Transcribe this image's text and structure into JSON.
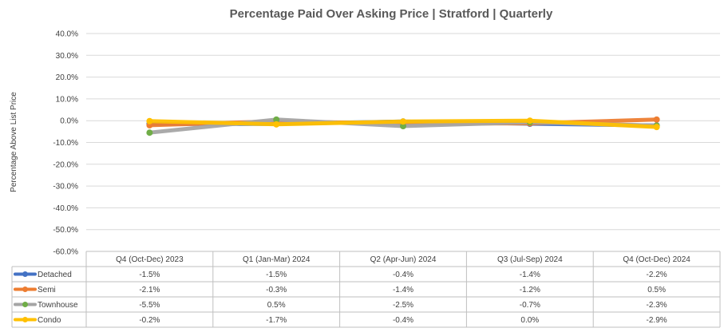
{
  "chart_data": {
    "type": "line",
    "title": "Percentage Paid Over Asking Price | Stratford |  Quarterly",
    "ylabel": "Percentage Above List Price",
    "xlabel": "",
    "ylim": [
      -60,
      40
    ],
    "yticks": [
      40,
      30,
      20,
      10,
      0,
      -10,
      -20,
      -30,
      -40,
      -50,
      -60
    ],
    "ytick_labels": [
      "40.0%",
      "30.0%",
      "20.0%",
      "10.0%",
      "0.0%",
      "-10.0%",
      "-20.0%",
      "-30.0%",
      "-40.0%",
      "-50.0%",
      "-60.0%"
    ],
    "grid": true,
    "legend_position": "bottom data table",
    "categories": [
      "Q4 (Oct-Dec) 2023",
      "Q1 (Jan-Mar) 2024",
      "Q2 (Apr-Jun) 2024",
      "Q3 (Jul-Sep) 2024",
      "Q4 (Oct-Dec) 2024"
    ],
    "series": [
      {
        "name": "Detached",
        "color": "#4472C4",
        "values": [
          -1.5,
          -1.5,
          -0.4,
          -1.4,
          -2.2
        ],
        "labels": [
          "-1.5%",
          "-1.5%",
          "-0.4%",
          "-1.4%",
          "-2.2%"
        ]
      },
      {
        "name": "Semi",
        "color": "#ED7D31",
        "values": [
          -2.1,
          -0.3,
          -1.4,
          -1.2,
          0.5
        ],
        "labels": [
          "-2.1%",
          "-0.3%",
          "-1.4%",
          "-1.2%",
          "0.5%"
        ]
      },
      {
        "name": "Townhouse",
        "color": "#A5A5A5",
        "marker_color": "#70AD47",
        "values": [
          -5.5,
          0.5,
          -2.5,
          -0.7,
          -2.3
        ],
        "labels": [
          "-5.5%",
          "0.5%",
          "-2.5%",
          "-0.7%",
          "-2.3%"
        ]
      },
      {
        "name": "Condo",
        "color": "#FFC000",
        "values": [
          -0.2,
          -1.7,
          -0.4,
          0.0,
          -2.9
        ],
        "labels": [
          "-0.2%",
          "-1.7%",
          "-0.4%",
          "0.0%",
          "-2.9%"
        ]
      }
    ]
  }
}
